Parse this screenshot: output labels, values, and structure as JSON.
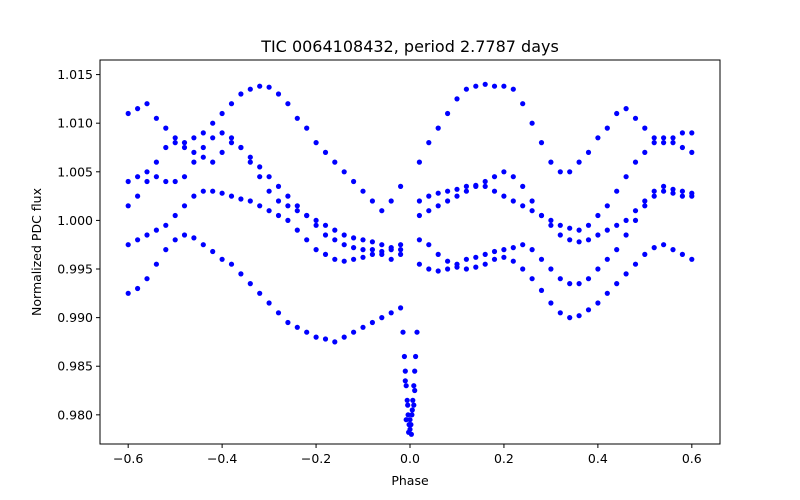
{
  "chart_data": {
    "type": "scatter",
    "title": "TIC 0064108432, period 2.7787 days",
    "xlabel": "Phase",
    "ylabel": "Normalized PDC flux",
    "xlim": [
      -0.66,
      0.66
    ],
    "ylim": [
      0.977,
      1.0165
    ],
    "x_ticks": [
      -0.6,
      -0.4,
      -0.2,
      0.0,
      0.2,
      0.4,
      0.6
    ],
    "x_tick_labels": [
      "−0.6",
      "−0.4",
      "−0.2",
      "0.0",
      "0.2",
      "0.4",
      "0.6"
    ],
    "y_ticks": [
      0.98,
      0.985,
      0.99,
      0.995,
      1.0,
      1.005,
      1.01,
      1.015
    ],
    "y_tick_labels": [
      "0.980",
      "0.985",
      "0.990",
      "0.995",
      "1.000",
      "1.005",
      "1.010",
      "1.015"
    ],
    "marker_color": "#0000ff",
    "grid": false,
    "series": [
      {
        "name": "PDC flux",
        "x": [
          -0.6,
          -0.58,
          -0.56,
          -0.54,
          -0.52,
          -0.5,
          -0.48,
          -0.46,
          -0.44,
          -0.42,
          -0.4,
          -0.38,
          -0.36,
          -0.34,
          -0.32,
          -0.3,
          -0.28,
          -0.26,
          -0.24,
          -0.22,
          -0.2,
          -0.18,
          -0.16,
          -0.14,
          -0.12,
          -0.1,
          -0.08,
          -0.06,
          -0.04,
          -0.02,
          0.02,
          0.04,
          0.06,
          0.08,
          0.1,
          0.12,
          0.14,
          0.16,
          0.18,
          0.2,
          0.22,
          0.24,
          0.26,
          0.28,
          0.3,
          0.32,
          0.34,
          0.36,
          0.38,
          0.4,
          0.42,
          0.44,
          0.46,
          0.48,
          0.5,
          0.52,
          0.54,
          0.56,
          0.58,
          0.6,
          -0.6,
          -0.58,
          -0.56,
          -0.54,
          -0.52,
          -0.5,
          -0.48,
          -0.46,
          -0.44,
          -0.42,
          -0.4,
          -0.38,
          -0.36,
          -0.34,
          -0.32,
          -0.3,
          -0.28,
          -0.26,
          -0.24,
          -0.22,
          -0.2,
          -0.18,
          -0.16,
          -0.14,
          -0.12,
          -0.1,
          -0.08,
          -0.06,
          -0.04,
          -0.02,
          0.02,
          0.04,
          0.06,
          0.08,
          0.1,
          0.12,
          0.14,
          0.16,
          0.18,
          0.2,
          0.22,
          0.24,
          0.26,
          0.28,
          0.3,
          0.32,
          0.34,
          0.36,
          0.38,
          0.4,
          0.42,
          0.44,
          0.46,
          0.48,
          0.5,
          0.52,
          0.54,
          0.56,
          0.58,
          0.6,
          -0.6,
          -0.58,
          -0.56,
          -0.54,
          -0.52,
          -0.5,
          -0.48,
          -0.46,
          -0.44,
          -0.42,
          -0.4,
          -0.38,
          -0.36,
          -0.34,
          -0.32,
          -0.3,
          -0.28,
          -0.26,
          -0.24,
          -0.22,
          -0.2,
          -0.18,
          -0.16,
          -0.14,
          -0.12,
          -0.1,
          -0.08,
          -0.06,
          -0.04,
          -0.02,
          0.02,
          0.04,
          0.06,
          0.08,
          0.1,
          0.12,
          0.14,
          0.16,
          0.18,
          0.2,
          0.22,
          0.24,
          0.26,
          0.28,
          0.3,
          0.32,
          0.34,
          0.36,
          0.38,
          0.4,
          0.42,
          0.44,
          0.46,
          0.48,
          0.5,
          0.52,
          0.54,
          0.56,
          0.58,
          0.6,
          -0.6,
          -0.58,
          -0.56,
          -0.54,
          -0.52,
          -0.5,
          -0.48,
          -0.46,
          -0.44,
          -0.42,
          -0.4,
          -0.38,
          -0.36,
          -0.34,
          -0.32,
          -0.3,
          -0.28,
          -0.26,
          -0.24,
          -0.22,
          -0.2,
          -0.18,
          -0.16,
          -0.14,
          -0.12,
          -0.1,
          -0.08,
          -0.06,
          -0.04,
          -0.02,
          0.02,
          0.04,
          0.06,
          0.08,
          0.1,
          0.12,
          0.14,
          0.16,
          0.18,
          0.2,
          0.22,
          0.24,
          0.26,
          0.28,
          0.3,
          0.32,
          0.34,
          0.36,
          0.38,
          0.4,
          0.42,
          0.44,
          0.46,
          0.48,
          0.5,
          0.52,
          0.54,
          0.56,
          0.58,
          0.6,
          -0.6,
          -0.58,
          -0.56,
          -0.54,
          -0.52,
          -0.5,
          -0.48,
          -0.46,
          -0.44,
          -0.42,
          -0.4,
          -0.38,
          -0.36,
          -0.34,
          -0.32,
          -0.3,
          -0.28,
          -0.26,
          -0.24,
          -0.22,
          -0.2,
          -0.18,
          -0.16,
          -0.14,
          -0.12,
          -0.1,
          -0.08,
          -0.06,
          -0.04,
          -0.02,
          0.02,
          0.04,
          0.06,
          0.08,
          0.1,
          0.12,
          0.14,
          0.16,
          0.18,
          0.2,
          0.22,
          0.24,
          0.26,
          0.28,
          0.3,
          0.32,
          0.34,
          0.36,
          0.38,
          0.4,
          0.42,
          0.44,
          0.46,
          0.48,
          0.5,
          0.52,
          0.54,
          0.56,
          0.58,
          0.6,
          -0.015,
          -0.012,
          -0.01,
          -0.008,
          -0.006,
          -0.004,
          -0.002,
          0.0,
          0.002,
          0.004,
          0.006,
          0.008,
          0.01,
          0.012,
          0.015,
          -0.01,
          -0.005,
          0.0,
          0.005,
          0.01,
          -0.008,
          0.008,
          0.003,
          -0.003
        ],
        "y": [
          1.011,
          1.0115,
          1.012,
          1.0105,
          1.0095,
          1.0085,
          1.008,
          1.0085,
          1.009,
          1.01,
          1.011,
          1.012,
          1.013,
          1.0135,
          1.0138,
          1.0137,
          1.013,
          1.012,
          1.0105,
          1.0095,
          1.008,
          1.007,
          1.006,
          1.005,
          1.004,
          1.003,
          1.002,
          1.001,
          1.002,
          1.0035,
          1.006,
          1.008,
          1.0095,
          1.011,
          1.0125,
          1.0135,
          1.0138,
          1.014,
          1.0138,
          1.0138,
          1.0135,
          1.012,
          1.01,
          1.008,
          1.006,
          1.005,
          1.005,
          1.006,
          1.007,
          1.0085,
          1.0095,
          1.011,
          1.0115,
          1.0105,
          1.0095,
          1.0085,
          1.008,
          1.0085,
          1.009,
          1.009,
          1.004,
          1.0045,
          1.005,
          1.0045,
          1.004,
          1.004,
          1.0045,
          1.006,
          1.0075,
          1.0085,
          1.009,
          1.0085,
          1.0075,
          1.0065,
          1.0055,
          1.0045,
          1.0035,
          1.0025,
          1.0015,
          1.0005,
          0.9995,
          0.9985,
          0.998,
          0.9975,
          0.9972,
          0.997,
          0.997,
          0.9965,
          0.996,
          0.9965,
          1.002,
          1.0025,
          1.0028,
          1.003,
          1.0032,
          1.0035,
          1.0036,
          1.0035,
          1.003,
          1.0025,
          1.002,
          1.0015,
          1.001,
          1.0005,
          1.0,
          0.9995,
          0.9992,
          0.999,
          0.9995,
          1.0005,
          1.0015,
          1.003,
          1.0045,
          1.006,
          1.007,
          1.008,
          1.0085,
          1.008,
          1.0075,
          1.007,
          0.9975,
          0.998,
          0.9985,
          0.999,
          0.9995,
          1.0005,
          1.0015,
          1.0025,
          1.003,
          1.003,
          1.0028,
          1.0025,
          1.0022,
          1.002,
          1.0015,
          1.001,
          1.0005,
          1.0,
          0.999,
          0.998,
          0.997,
          0.9965,
          0.996,
          0.9958,
          0.996,
          0.9962,
          0.9965,
          0.9968,
          0.997,
          0.9975,
          0.9955,
          0.995,
          0.9948,
          0.995,
          0.9955,
          0.996,
          0.9962,
          0.9965,
          0.9968,
          0.997,
          0.9972,
          0.9975,
          0.997,
          0.996,
          0.995,
          0.994,
          0.9935,
          0.9935,
          0.994,
          0.995,
          0.996,
          0.997,
          0.9985,
          1.0,
          1.0015,
          1.0025,
          1.003,
          1.0028,
          1.0025,
          1.0025,
          0.9925,
          0.993,
          0.994,
          0.9955,
          0.997,
          0.998,
          0.9985,
          0.9982,
          0.9975,
          0.9968,
          0.996,
          0.9955,
          0.9945,
          0.9935,
          0.9925,
          0.9915,
          0.9905,
          0.9895,
          0.989,
          0.9885,
          0.988,
          0.9878,
          0.9875,
          0.988,
          0.9885,
          0.989,
          0.9895,
          0.99,
          0.9905,
          0.991,
          0.998,
          0.9975,
          0.9965,
          0.9958,
          0.9952,
          0.995,
          0.9952,
          0.9955,
          0.996,
          0.9962,
          0.9958,
          0.995,
          0.994,
          0.9928,
          0.9915,
          0.9905,
          0.99,
          0.9902,
          0.9908,
          0.9915,
          0.9925,
          0.9935,
          0.9945,
          0.9955,
          0.9965,
          0.9972,
          0.9975,
          0.997,
          0.9965,
          0.996,
          1.0015,
          1.0025,
          1.004,
          1.006,
          1.0075,
          1.008,
          1.0075,
          1.007,
          1.0065,
          1.006,
          1.007,
          1.008,
          1.0075,
          1.006,
          1.0045,
          1.003,
          1.002,
          1.0015,
          1.001,
          1.0005,
          1.0,
          0.9995,
          0.999,
          0.9985,
          0.9982,
          0.998,
          0.9978,
          0.9975,
          0.9972,
          0.997,
          1.0005,
          1.001,
          1.0015,
          1.002,
          1.0025,
          1.003,
          1.0035,
          1.004,
          1.0045,
          1.005,
          1.0045,
          1.0035,
          1.002,
          1.0005,
          0.9995,
          0.9985,
          0.998,
          0.9978,
          0.998,
          0.9985,
          0.999,
          0.9995,
          1.0,
          1.001,
          1.002,
          1.003,
          1.0035,
          1.0032,
          1.003,
          1.0028,
          0.9885,
          0.986,
          0.9845,
          0.983,
          0.9815,
          0.98,
          0.979,
          0.9785,
          0.979,
          0.98,
          0.9815,
          0.983,
          0.9845,
          0.986,
          0.9885,
          0.9835,
          0.981,
          0.9795,
          0.9805,
          0.9825,
          0.9795,
          0.981,
          0.978,
          0.9782
        ]
      }
    ]
  }
}
